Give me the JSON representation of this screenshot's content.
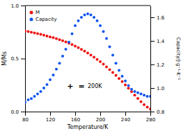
{
  "chart_data": {
    "type": "scatter",
    "x_label": "Temperature/K",
    "y_label": "M/Ms",
    "y2_label": "Capacity/J·g⁻¹·K⁻¹",
    "xlim": [
      80,
      280
    ],
    "xticks": [
      80,
      120,
      160,
      200,
      240,
      280
    ],
    "ylim": [
      0.0,
      1.0
    ],
    "yticks": [
      {
        "value": 0.0,
        "label": "0.0"
      },
      0.5,
      {
        "value": 1.0,
        "label": "1.0"
      }
    ],
    "y2lim": [
      0.8,
      1.7
    ],
    "y2ticks": [
      0.8,
      {
        "value": 1.0,
        "label": "1.0"
      },
      1.2,
      1.4,
      1.6
    ],
    "x": [
      80,
      85,
      90,
      95,
      100,
      105,
      110,
      115,
      120,
      125,
      130,
      135,
      140,
      145,
      150,
      155,
      160,
      165,
      170,
      175,
      180,
      185,
      190,
      195,
      200,
      205,
      210,
      215,
      220,
      225,
      230,
      235,
      240,
      245,
      250,
      255,
      260,
      265,
      270,
      275,
      280
    ],
    "series": [
      {
        "name": "M",
        "color": "#ee1111",
        "values": [
          0.76,
          0.755,
          0.748,
          0.742,
          0.735,
          0.728,
          0.72,
          0.713,
          0.705,
          0.697,
          0.688,
          0.678,
          0.668,
          0.657,
          0.645,
          0.632,
          0.618,
          0.603,
          0.587,
          0.57,
          0.552,
          0.533,
          0.513,
          0.492,
          0.47,
          0.447,
          0.422,
          0.396,
          0.369,
          0.341,
          0.312,
          0.282,
          0.251,
          0.22,
          0.188,
          0.156,
          0.124,
          0.093,
          0.065,
          0.042,
          0.025
        ]
      },
      {
        "name": "Capacity",
        "color": "#1155ee",
        "axis": "y2",
        "values": [
          0.88,
          0.9,
          0.91,
          0.93,
          0.95,
          0.97,
          1.0,
          1.03,
          1.07,
          1.11,
          1.16,
          1.21,
          1.27,
          1.33,
          1.39,
          1.46,
          1.53,
          1.57,
          1.6,
          1.62,
          1.63,
          1.62,
          1.6,
          1.57,
          1.53,
          1.48,
          1.42,
          1.35,
          1.28,
          1.21,
          1.15,
          1.1,
          1.06,
          1.02,
          0.99,
          0.97,
          0.96,
          0.95,
          0.94,
          0.93,
          0.93
        ]
      }
    ],
    "legend": "upper left",
    "annotations": [
      "+",
      "=",
      "200K"
    ]
  }
}
